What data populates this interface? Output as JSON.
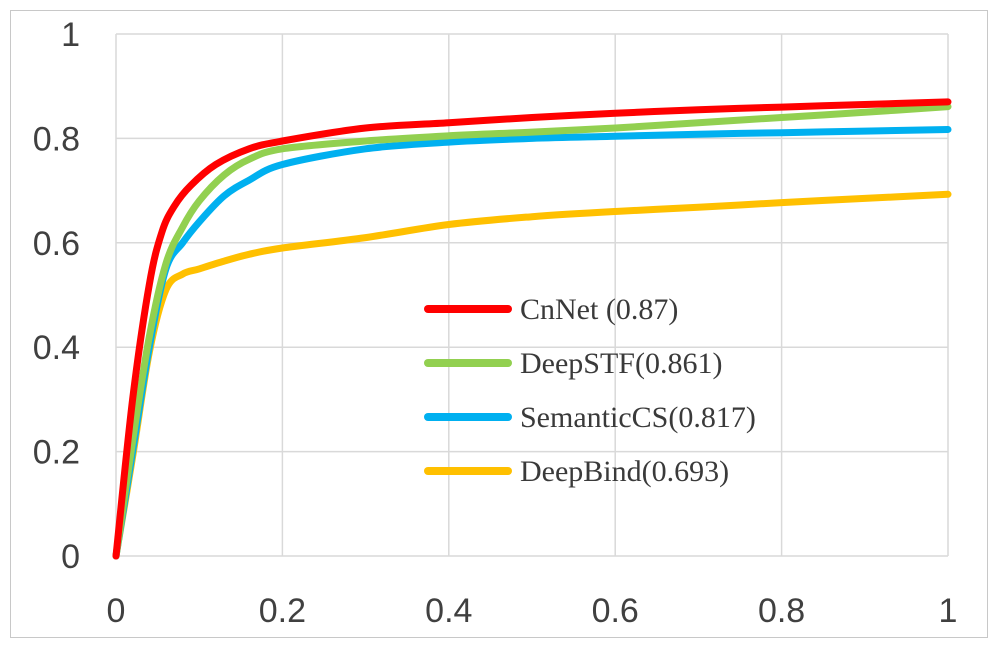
{
  "chart_data": {
    "type": "line",
    "title": "",
    "xlabel": "",
    "ylabel": "",
    "xlim": [
      0,
      1
    ],
    "ylim": [
      0,
      1
    ],
    "grid": true,
    "x_ticks": [
      "0",
      "0.2",
      "0.4",
      "0.6",
      "0.8",
      "1"
    ],
    "y_ticks": [
      "0",
      "0.2",
      "0.4",
      "0.6",
      "0.8",
      "1"
    ],
    "legend_position": "center-right",
    "series": [
      {
        "name": "CnNet (0.87)",
        "color": "#ff0000",
        "x": [
          0,
          0.02,
          0.04,
          0.055,
          0.07,
          0.09,
          0.12,
          0.16,
          0.2,
          0.3,
          0.4,
          0.5,
          0.6,
          0.7,
          0.8,
          0.9,
          1.0
        ],
        "y": [
          0,
          0.3,
          0.52,
          0.62,
          0.67,
          0.71,
          0.75,
          0.78,
          0.795,
          0.82,
          0.83,
          0.84,
          0.848,
          0.855,
          0.86,
          0.865,
          0.87
        ]
      },
      {
        "name": "DeepSTF(0.861)",
        "color": "#92d050",
        "x": [
          0,
          0.02,
          0.04,
          0.06,
          0.08,
          0.1,
          0.13,
          0.16,
          0.2,
          0.3,
          0.4,
          0.5,
          0.6,
          0.7,
          0.8,
          0.9,
          1.0
        ],
        "y": [
          0,
          0.22,
          0.42,
          0.56,
          0.63,
          0.68,
          0.73,
          0.76,
          0.78,
          0.795,
          0.805,
          0.812,
          0.82,
          0.83,
          0.84,
          0.85,
          0.861
        ]
      },
      {
        "name": "SemanticCS(0.817)",
        "color": "#00b0f0",
        "x": [
          0,
          0.02,
          0.04,
          0.06,
          0.08,
          0.1,
          0.13,
          0.16,
          0.2,
          0.3,
          0.4,
          0.5,
          0.6,
          0.7,
          0.8,
          0.9,
          1.0
        ],
        "y": [
          0,
          0.2,
          0.4,
          0.55,
          0.6,
          0.64,
          0.69,
          0.72,
          0.75,
          0.78,
          0.793,
          0.8,
          0.804,
          0.808,
          0.811,
          0.814,
          0.817
        ]
      },
      {
        "name": "DeepBind(0.693)",
        "color": "#ffc000",
        "x": [
          0,
          0.02,
          0.04,
          0.06,
          0.08,
          0.1,
          0.13,
          0.16,
          0.2,
          0.3,
          0.4,
          0.5,
          0.6,
          0.7,
          0.8,
          0.9,
          1.0
        ],
        "y": [
          0,
          0.19,
          0.39,
          0.51,
          0.54,
          0.55,
          0.565,
          0.578,
          0.59,
          0.61,
          0.635,
          0.65,
          0.66,
          0.668,
          0.677,
          0.685,
          0.693
        ]
      }
    ]
  }
}
